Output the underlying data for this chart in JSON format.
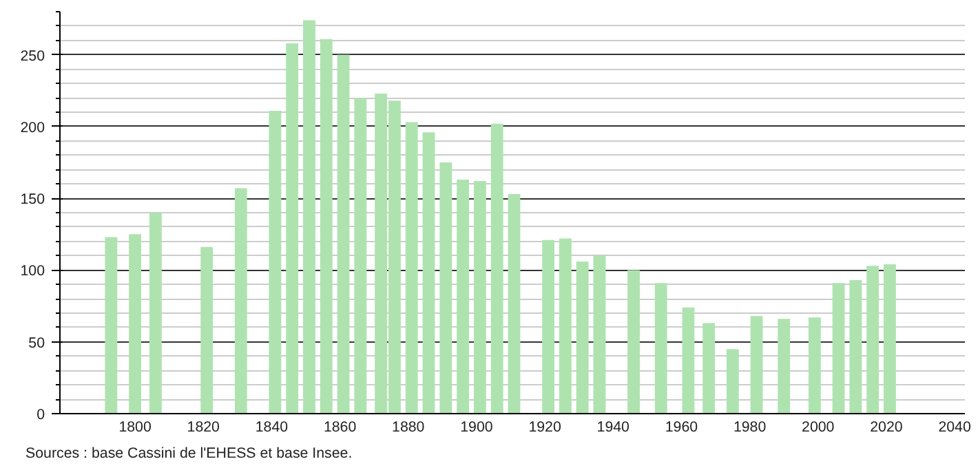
{
  "chart_data": {
    "type": "bar",
    "x": [
      1793,
      1800,
      1806,
      1821,
      1831,
      1841,
      1846,
      1851,
      1856,
      1861,
      1866,
      1872,
      1876,
      1881,
      1886,
      1891,
      1896,
      1901,
      1906,
      1911,
      1921,
      1926,
      1931,
      1936,
      1946,
      1954,
      1962,
      1968,
      1975,
      1982,
      1990,
      1999,
      2006,
      2011,
      2016,
      2021
    ],
    "values": [
      123,
      125,
      140,
      116,
      157,
      211,
      258,
      274,
      261,
      250,
      220,
      223,
      218,
      203,
      196,
      175,
      163,
      162,
      202,
      153,
      121,
      122,
      106,
      110,
      100,
      91,
      74,
      63,
      45,
      68,
      66,
      67,
      91,
      93,
      103,
      104
    ],
    "color": "#aee3b0",
    "xlim": [
      1778,
      2043
    ],
    "xticks": [
      1800,
      1820,
      1840,
      1860,
      1880,
      1900,
      1920,
      1940,
      1960,
      1980,
      2000,
      2020,
      2040
    ],
    "ylim": [
      0,
      280
    ],
    "yticks": [
      0,
      50,
      100,
      150,
      200,
      250
    ],
    "grid": "y",
    "annotations": [
      "Sources : base Cassini de l'EHESS et base Insee."
    ]
  }
}
